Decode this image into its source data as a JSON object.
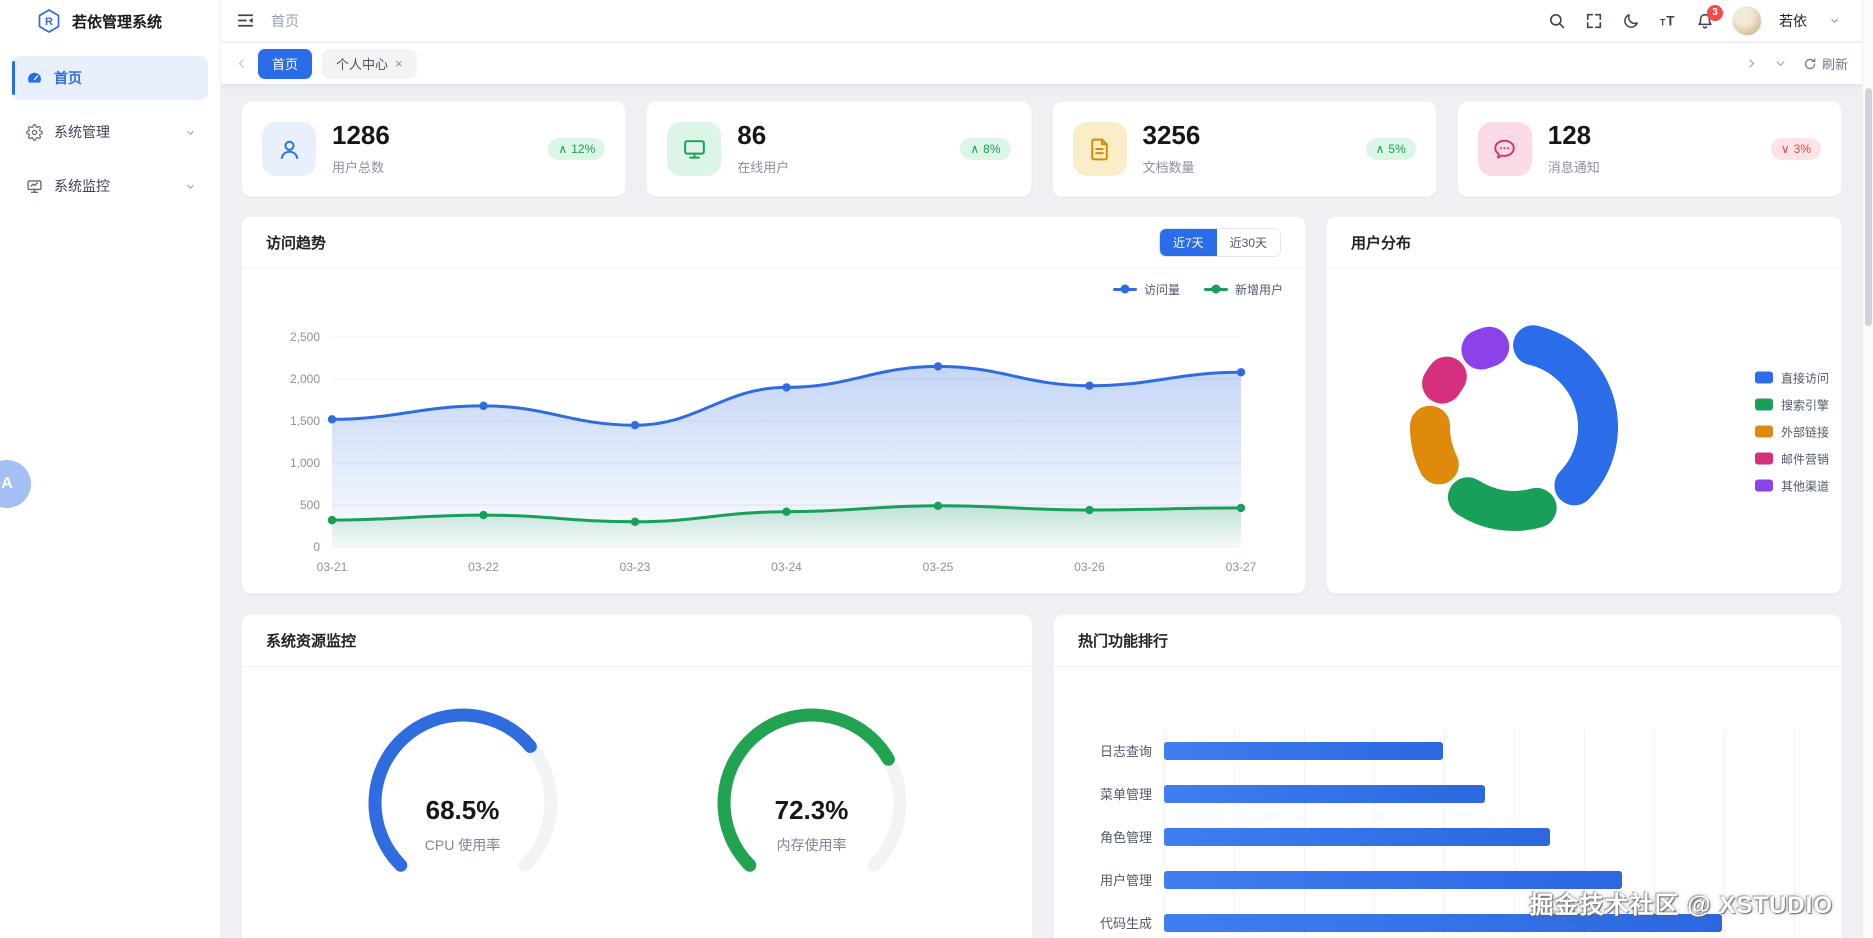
{
  "app": {
    "title": "若依管理系统",
    "logo_letter": "R"
  },
  "navbar": {
    "breadcrumb": "首页",
    "notification_count": "3",
    "user_name": "若依",
    "icons": [
      "collapse-menu",
      "search",
      "fullscreen",
      "dark-mode",
      "font-size",
      "notifications",
      "user-dropdown"
    ]
  },
  "sidebar": {
    "items": [
      {
        "label": "首页",
        "icon": "dashboard-icon",
        "active": true,
        "expandable": false
      },
      {
        "label": "系统管理",
        "icon": "gear-icon",
        "active": false,
        "expandable": true
      },
      {
        "label": "系统监控",
        "icon": "monitor-icon",
        "active": false,
        "expandable": true
      }
    ]
  },
  "tags": {
    "tabs": [
      {
        "label": "首页",
        "active": true,
        "closable": false
      },
      {
        "label": "个人中心",
        "active": false,
        "closable": true
      }
    ],
    "close_glyph": "×",
    "refresh_label": "刷新"
  },
  "stats": [
    {
      "value": "1286",
      "label": "用户总数",
      "change": "12%",
      "trend": "up",
      "icon": "user-icon",
      "accent": "#2b6de9",
      "tint": "#e8effd"
    },
    {
      "value": "86",
      "label": "在线用户",
      "change": "8%",
      "trend": "up",
      "icon": "display-icon",
      "accent": "#18a058",
      "tint": "#dcf5e6"
    },
    {
      "value": "3256",
      "label": "文档数量",
      "change": "5%",
      "trend": "up",
      "icon": "document-icon",
      "accent": "#d78b00",
      "tint": "#faeec9"
    },
    {
      "value": "128",
      "label": "消息通知",
      "change": "3%",
      "trend": "down",
      "icon": "message-icon",
      "accent": "#d6336c",
      "tint": "#fadbe7"
    }
  ],
  "watermark": "掘金技术社区 @ XSTUDIO",
  "floating_badge": "A",
  "chart_data": [
    {
      "id": "visit-trend",
      "type": "line",
      "title": "访问趋势",
      "range_buttons": [
        "近7天",
        "近30天"
      ],
      "active_range": "近7天",
      "x": [
        "03-21",
        "03-22",
        "03-23",
        "03-24",
        "03-25",
        "03-26",
        "03-27"
      ],
      "ylim": [
        0,
        2500
      ],
      "yticks": [
        2500,
        2000,
        1500,
        1000,
        500,
        0
      ],
      "grid": true,
      "legend_position": "top-right",
      "smooth": true,
      "area": true,
      "series": [
        {
          "name": "访问量",
          "color": "#2f6ce0",
          "values": [
            1520,
            1680,
            1450,
            1900,
            2150,
            1920,
            2080
          ]
        },
        {
          "name": "新增用户",
          "color": "#18a058",
          "values": [
            320,
            380,
            300,
            420,
            490,
            440,
            465
          ]
        }
      ]
    },
    {
      "id": "user-distribution",
      "type": "pie",
      "title": "用户分布",
      "donut": true,
      "legend_position": "right",
      "slices": [
        {
          "label": "直接访问",
          "value": 42,
          "color": "#2b6de9"
        },
        {
          "label": "搜索引擎",
          "value": 22,
          "color": "#18a058"
        },
        {
          "label": "外部链接",
          "value": 16,
          "color": "#df8a0a"
        },
        {
          "label": "邮件营销",
          "value": 10,
          "color": "#d62f7d"
        },
        {
          "label": "其他渠道",
          "value": 10,
          "color": "#8a43ea"
        }
      ]
    },
    {
      "id": "system-resources",
      "type": "gauge",
      "title": "系统资源监控",
      "gauges": [
        {
          "value": 68.5,
          "display": "68.5%",
          "label": "CPU 使用率",
          "color": "#2f6ce0"
        },
        {
          "value": 72.3,
          "display": "72.3%",
          "label": "内存使用率",
          "color": "#21a352"
        }
      ]
    },
    {
      "id": "top-features",
      "type": "bar",
      "title": "热门功能排行",
      "orientation": "horizontal",
      "categories": [
        "日志查询",
        "菜单管理",
        "角色管理",
        "用户管理",
        "代码生成"
      ],
      "values": [
        600,
        690,
        830,
        985,
        1200
      ],
      "xlim": [
        0,
        1400
      ],
      "color": "#2b68e0",
      "grid": true
    }
  ]
}
